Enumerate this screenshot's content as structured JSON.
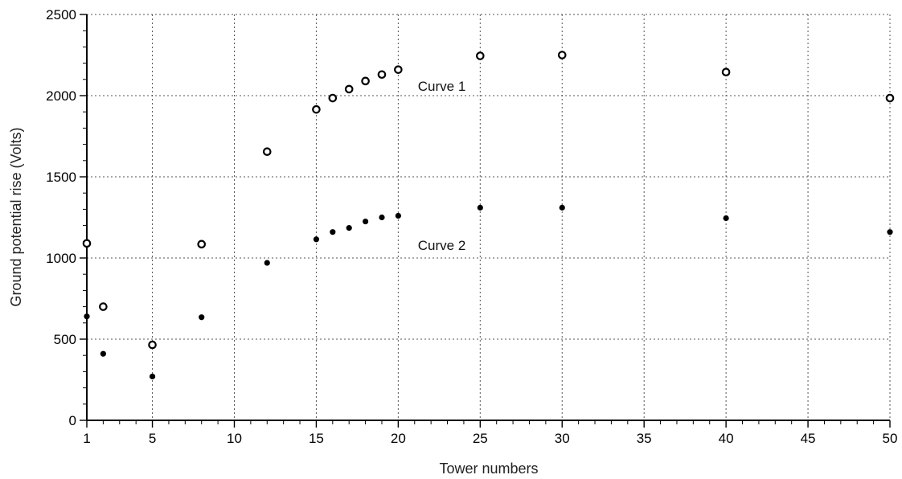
{
  "chart_data": {
    "type": "scatter",
    "title": "",
    "xlabel": "Tower numbers",
    "ylabel": "Ground potential rise (Volts)",
    "xlim": [
      1,
      50
    ],
    "ylim": [
      0,
      2500
    ],
    "x_ticks": [
      1,
      5,
      10,
      15,
      20,
      25,
      30,
      35,
      40,
      45,
      50
    ],
    "y_ticks": [
      0,
      500,
      1000,
      1500,
      2000,
      2500
    ],
    "grid": true,
    "series": [
      {
        "name": "Curve 1",
        "marker": "open-circle",
        "points": [
          {
            "x": 1,
            "y": 1090
          },
          {
            "x": 2,
            "y": 700
          },
          {
            "x": 5,
            "y": 465
          },
          {
            "x": 8,
            "y": 1085
          },
          {
            "x": 12,
            "y": 1655
          },
          {
            "x": 15,
            "y": 1915
          },
          {
            "x": 16,
            "y": 1985
          },
          {
            "x": 17,
            "y": 2040
          },
          {
            "x": 18,
            "y": 2090
          },
          {
            "x": 19,
            "y": 2130
          },
          {
            "x": 20,
            "y": 2160
          },
          {
            "x": 25,
            "y": 2245
          },
          {
            "x": 30,
            "y": 2250
          },
          {
            "x": 40,
            "y": 2145
          },
          {
            "x": 50,
            "y": 1985
          }
        ]
      },
      {
        "name": "Curve 2",
        "marker": "filled-circle",
        "points": [
          {
            "x": 1,
            "y": 640
          },
          {
            "x": 2,
            "y": 410
          },
          {
            "x": 5,
            "y": 270
          },
          {
            "x": 8,
            "y": 635
          },
          {
            "x": 12,
            "y": 970
          },
          {
            "x": 15,
            "y": 1115
          },
          {
            "x": 16,
            "y": 1160
          },
          {
            "x": 17,
            "y": 1185
          },
          {
            "x": 18,
            "y": 1225
          },
          {
            "x": 19,
            "y": 1250
          },
          {
            "x": 20,
            "y": 1260
          },
          {
            "x": 25,
            "y": 1310
          },
          {
            "x": 30,
            "y": 1310
          },
          {
            "x": 40,
            "y": 1245
          },
          {
            "x": 50,
            "y": 1160
          }
        ]
      }
    ],
    "annotations": [
      {
        "text": "Curve 1",
        "x": 21,
        "y": 2060
      },
      {
        "text": "Curve 2",
        "x": 21,
        "y": 1080
      }
    ]
  }
}
